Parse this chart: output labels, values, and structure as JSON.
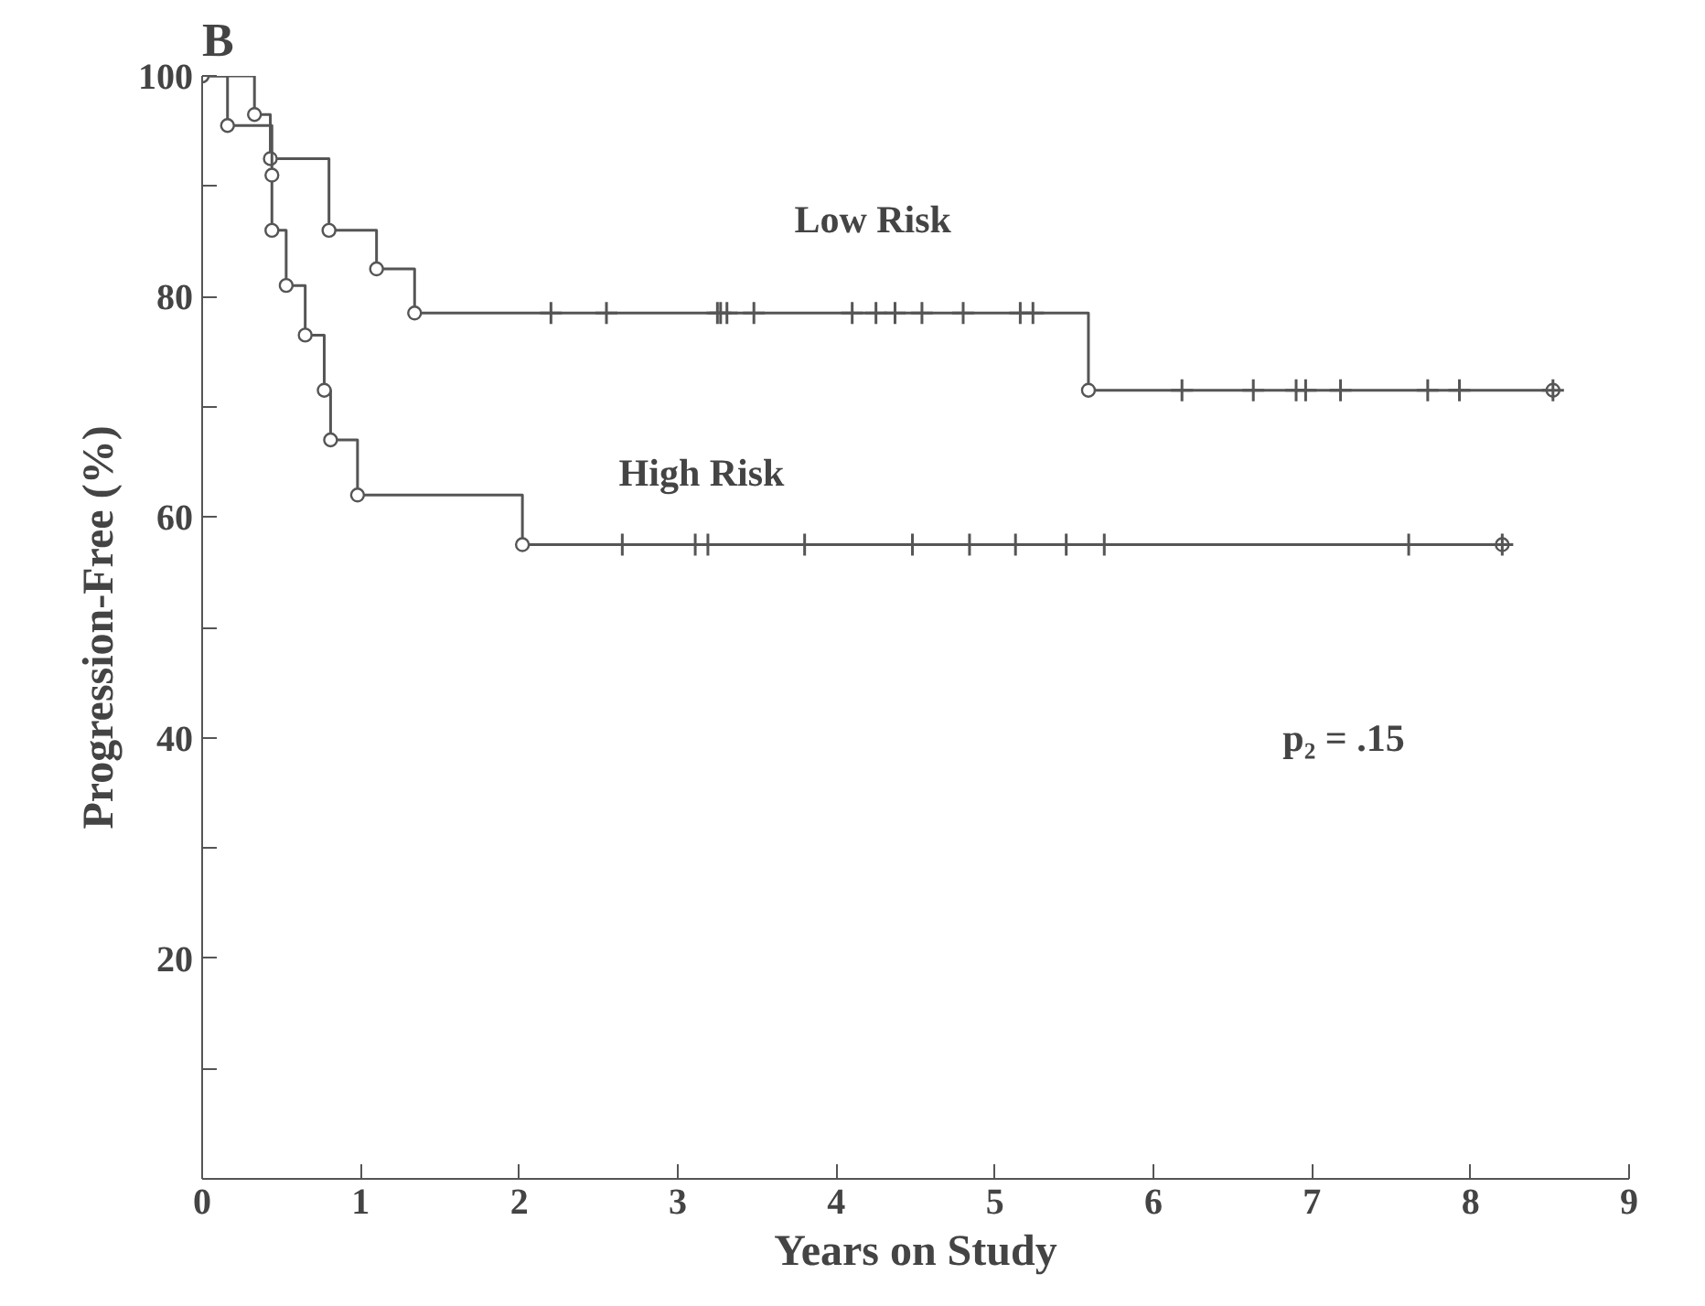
{
  "chart_data": {
    "type": "step",
    "title": "B",
    "xlabel": "Years on Study",
    "ylabel": "Progression-Free (%)",
    "xlim": [
      0,
      9
    ],
    "ylim": [
      0,
      100
    ],
    "xticks": [
      0,
      1,
      2,
      3,
      4,
      5,
      6,
      7,
      8,
      9
    ],
    "yticks": [
      {
        "value": 0,
        "label": null
      },
      {
        "value": 10,
        "label": null
      },
      20,
      {
        "value": 30,
        "label": null
      },
      40,
      {
        "value": 50,
        "label": null
      },
      60,
      {
        "value": 70,
        "label": null
      },
      80,
      {
        "value": 90,
        "label": null
      },
      100
    ],
    "grid": false,
    "series": [
      {
        "color": "#555555",
        "marker": "circle",
        "x": [
          0,
          0.33,
          0.43,
          0.8,
          1.1,
          1.34,
          5.59,
          8.52
        ],
        "values": [
          100,
          96.5,
          92.5,
          86,
          82.5,
          78.5,
          71.5,
          71.5
        ]
      },
      {
        "color": "#555555",
        "marker": "circle",
        "x": [
          0,
          0.16,
          0.44,
          0.44,
          0.53,
          0.65,
          0.77,
          0.81,
          0.98,
          2.02,
          8.2
        ],
        "values": [
          100,
          95.5,
          91,
          86,
          81,
          76.5,
          71.5,
          67,
          62,
          57.5,
          57.5
        ]
      },
      {
        "type": "scatter",
        "color": "#555555",
        "marker": "cross",
        "x": [
          2.2,
          2.55,
          3.25,
          3.27,
          3.31,
          3.48,
          4.1,
          4.25,
          4.37,
          4.54,
          4.8,
          5.16,
          5.24
        ],
        "values": [
          78.5,
          78.5,
          78.5,
          78.5,
          78.5,
          78.5,
          78.5,
          78.5,
          78.5,
          78.5,
          78.5,
          78.5,
          78.5
        ]
      },
      {
        "type": "scatter",
        "color": "#555555",
        "marker": "cross",
        "x": [
          6.18,
          6.63,
          6.9,
          6.96,
          7.18,
          7.73,
          7.93,
          8.52
        ],
        "values": [
          71.5,
          71.5,
          71.5,
          71.5,
          71.5,
          71.5,
          71.5,
          71.5
        ]
      },
      {
        "type": "scatter",
        "color": "#555555",
        "marker": "cross",
        "x": [
          2.65,
          3.11,
          3.19,
          3.8,
          4.48,
          4.84,
          5.13,
          5.45,
          5.69,
          7.61,
          8.2
        ],
        "values": [
          57.5,
          57.5,
          57.5,
          57.5,
          57.5,
          57.5,
          57.5,
          57.5,
          57.5,
          57.5,
          57.5
        ]
      }
    ],
    "annotations": [
      "Low Risk",
      "High Risk",
      "p₂ = .15"
    ]
  }
}
